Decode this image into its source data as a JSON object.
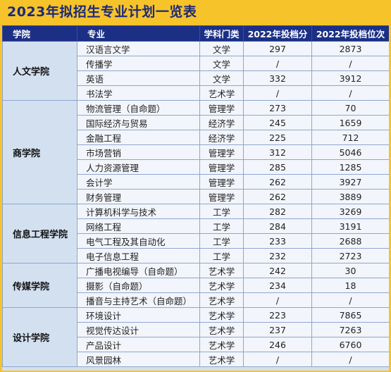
{
  "title": "2023年拟招生专业计划一览表",
  "headers": [
    "学院",
    "专业",
    "学科门类",
    "2022年投档分",
    "2022年投档位次"
  ],
  "groups": [
    {
      "college": "人文学院",
      "rows": [
        [
          "汉语言文学",
          "文学",
          "297",
          "2873"
        ],
        [
          "传播学",
          "文学",
          "/",
          "/"
        ],
        [
          "英语",
          "文学",
          "332",
          "3912"
        ],
        [
          "书法学",
          "艺术学",
          "/",
          "/"
        ]
      ]
    },
    {
      "college": "商学院",
      "rows": [
        [
          "物流管理（自命题）",
          "管理学",
          "273",
          "70"
        ],
        [
          "国际经济与贸易",
          "经济学",
          "245",
          "1659"
        ],
        [
          "金融工程",
          "经济学",
          "225",
          "712"
        ],
        [
          "市场营销",
          "管理学",
          "312",
          "5046"
        ],
        [
          "人力资源管理",
          "管理学",
          "285",
          "1285"
        ],
        [
          "会计学",
          "管理学",
          "262",
          "3927"
        ],
        [
          "财务管理",
          "管理学",
          "262",
          "3889"
        ]
      ]
    },
    {
      "college": "信息工程学院",
      "rows": [
        [
          "计算机科学与技术",
          "工学",
          "282",
          "3269"
        ],
        [
          "网络工程",
          "工学",
          "284",
          "3191"
        ],
        [
          "电气工程及其自动化",
          "工学",
          "233",
          "2688"
        ],
        [
          "电子信息工程",
          "工学",
          "232",
          "2723"
        ]
      ]
    },
    {
      "college": "传媒学院",
      "rows": [
        [
          "广播电视编导（自命题）",
          "艺术学",
          "242",
          "30"
        ],
        [
          "摄影（自命题）",
          "艺术学",
          "234",
          "18"
        ],
        [
          "播音与主持艺术（自命题）",
          "艺术学",
          "/",
          "/"
        ]
      ]
    },
    {
      "college": "设计学院",
      "rows": [
        [
          "环境设计",
          "艺术学",
          "223",
          "7865"
        ],
        [
          "视觉传达设计",
          "艺术学",
          "237",
          "7263"
        ],
        [
          "产品设计",
          "艺术学",
          "246",
          "6760"
        ],
        [
          "风景园林",
          "艺术学",
          "/",
          "/"
        ]
      ]
    }
  ]
}
